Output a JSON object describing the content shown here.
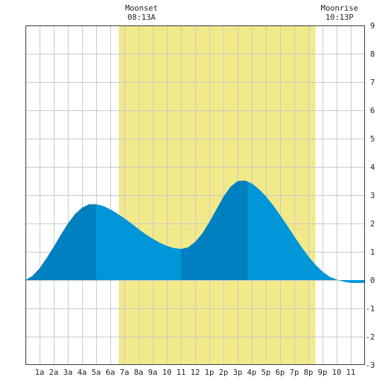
{
  "chart_data": {
    "type": "area",
    "title": "",
    "xlabel": "",
    "ylabel": "",
    "ylim": [
      -3,
      9
    ],
    "y_ticks": [
      9,
      8,
      7,
      6,
      5,
      4,
      3,
      2,
      1,
      0,
      -1,
      -2,
      -3
    ],
    "x_ticks": [
      "1a",
      "2a",
      "3a",
      "4a",
      "5a",
      "6a",
      "7a",
      "8a",
      "9a",
      "10",
      "11",
      "12",
      "1p",
      "2p",
      "3p",
      "4p",
      "5p",
      "6p",
      "7p",
      "8p",
      "9p",
      "10",
      "11"
    ],
    "xlim_hours": [
      0,
      24
    ],
    "grid": true,
    "daylight_hours": [
      6.6,
      20.5
    ],
    "annotations": [
      {
        "label": "Moonset",
        "time": "08:13A",
        "hour": 8.2
      },
      {
        "label": "Moonrise",
        "time": "10:13P",
        "hour": 22.2
      }
    ],
    "series": [
      {
        "x": [
          0,
          0.5,
          1,
          1.5,
          2,
          2.5,
          3,
          3.5,
          4,
          4.5,
          5,
          5.5,
          6,
          6.5,
          7,
          7.5,
          8,
          8.5,
          9,
          9.5,
          10,
          10.5,
          11,
          11.5,
          12,
          12.5,
          13,
          13.5,
          14,
          14.5,
          15,
          15.5,
          16,
          16.5,
          17,
          17.5,
          18,
          18.5,
          19,
          19.5,
          20,
          20.5,
          21,
          21.5,
          22,
          22.5,
          23,
          23.5,
          24
        ],
        "values": [
          0.0,
          0.15,
          0.42,
          0.78,
          1.18,
          1.6,
          2.0,
          2.33,
          2.56,
          2.68,
          2.68,
          2.62,
          2.5,
          2.35,
          2.18,
          2.0,
          1.8,
          1.62,
          1.46,
          1.32,
          1.21,
          1.13,
          1.1,
          1.16,
          1.35,
          1.65,
          2.05,
          2.5,
          2.95,
          3.3,
          3.5,
          3.52,
          3.42,
          3.22,
          2.96,
          2.65,
          2.3,
          1.93,
          1.55,
          1.18,
          0.84,
          0.54,
          0.3,
          0.12,
          0.02,
          -0.06,
          -0.1,
          -0.1,
          -0.1
        ]
      }
    ],
    "tide_bands": [
      {
        "from_hour": 0,
        "to_hour": 5,
        "color": "#0080c0"
      },
      {
        "from_hour": 5,
        "to_hour": 11,
        "color": "#0096d8"
      },
      {
        "from_hour": 11,
        "to_hour": 15.7,
        "color": "#0080c0"
      },
      {
        "from_hour": 15.7,
        "to_hour": 24,
        "color": "#0096d8"
      }
    ],
    "colors": {
      "daylight": "#f2ea8a",
      "grid": "#c8c8c8",
      "tide_dark": "#0080c0",
      "tide_light": "#0096d8",
      "background": "#ffffff"
    }
  }
}
